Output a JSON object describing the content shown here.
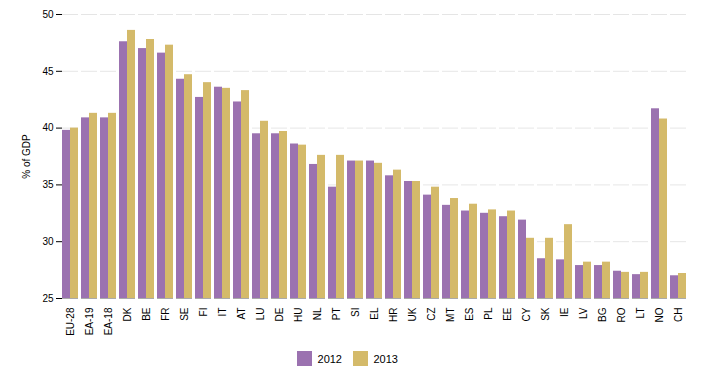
{
  "chart_data": {
    "type": "bar",
    "ylabel": "% of GDP",
    "categories": [
      "EU-28",
      "EA-19",
      "EA-18",
      "DK",
      "BE",
      "FR",
      "SE",
      "FI",
      "IT",
      "AT",
      "LU",
      "DE",
      "HU",
      "NL",
      "PT",
      "SI",
      "EL",
      "HR",
      "UK",
      "CZ",
      "MT",
      "ES",
      "PL",
      "EE",
      "CY",
      "SK",
      "IE",
      "LV",
      "BG",
      "RO",
      "LT",
      "NO",
      "CH"
    ],
    "series": [
      {
        "name": "2012",
        "color": "#9B72B0",
        "values": [
          39.8,
          40.9,
          40.9,
          47.6,
          47.0,
          46.6,
          44.3,
          42.7,
          43.6,
          42.3,
          39.5,
          39.5,
          38.6,
          36.8,
          34.8,
          37.1,
          37.1,
          35.8,
          35.3,
          34.1,
          33.2,
          32.7,
          32.5,
          32.2,
          31.9,
          28.5,
          28.4,
          27.9,
          27.9,
          27.4,
          27.1,
          41.7,
          27.0
        ]
      },
      {
        "name": "2013",
        "color": "#D4BA6A",
        "values": [
          40.0,
          41.3,
          41.3,
          48.6,
          47.8,
          47.3,
          44.7,
          44.0,
          43.5,
          43.3,
          40.6,
          39.7,
          38.5,
          37.6,
          37.6,
          37.1,
          36.9,
          36.3,
          35.3,
          34.8,
          33.8,
          33.3,
          32.8,
          32.7,
          30.3,
          30.3,
          31.5,
          28.2,
          28.2,
          27.3,
          27.3,
          40.8,
          27.2
        ]
      }
    ],
    "ylim": [
      25,
      50
    ],
    "yticks": [
      25,
      30,
      35,
      40,
      45,
      50
    ],
    "grid": true,
    "legend": "bottom"
  }
}
